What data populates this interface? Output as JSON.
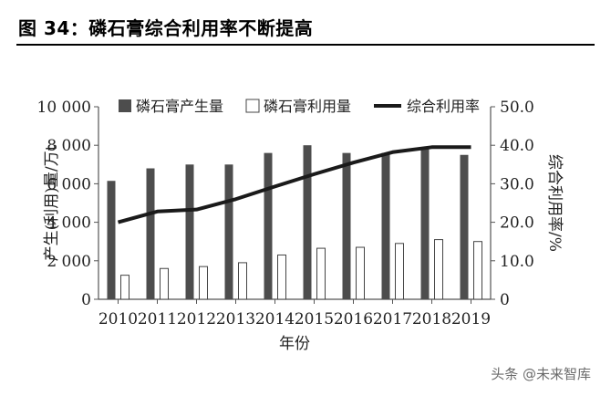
{
  "figure": {
    "title": "图 34：磷石膏综合利用率不断提高"
  },
  "watermark": "头条 @未来智库",
  "chart_data": {
    "type": "bar",
    "categories": [
      "2010",
      "2011",
      "2012",
      "2013",
      "2014",
      "2015",
      "2016",
      "2017",
      "2018",
      "2019"
    ],
    "series": [
      {
        "name": "磷石膏产生量",
        "kind": "bar",
        "axis": "left",
        "color": "#4d4d4d",
        "values": [
          6150,
          6800,
          7000,
          7000,
          7600,
          8000,
          7600,
          7600,
          7900,
          7500
        ]
      },
      {
        "name": "磷石膏利用量",
        "kind": "bar",
        "axis": "left",
        "color": "#ffffff",
        "values": [
          1250,
          1600,
          1700,
          1900,
          2300,
          2650,
          2700,
          2900,
          3100,
          3000
        ]
      },
      {
        "name": "综合利用率",
        "kind": "line",
        "axis": "right",
        "color": "#1a1a1a",
        "values": [
          20.0,
          22.8,
          23.3,
          26.0,
          29.3,
          32.5,
          35.5,
          38.2,
          39.5,
          39.5
        ]
      }
    ],
    "xlabel": "年份",
    "ylabel_left": "产生(利用)量/万t",
    "ylabel_right": "综合利用率/%",
    "ylim_left": [
      0,
      10000
    ],
    "ylim_right": [
      0,
      50
    ],
    "yticks_left": [
      "0",
      "2 000",
      "4 000",
      "6 000",
      "8 000",
      "10 000"
    ],
    "yticks_right": [
      "0",
      "10.0",
      "20.0",
      "30.0",
      "40.0",
      "50.0"
    ],
    "grid": false,
    "legend_position": "top"
  }
}
